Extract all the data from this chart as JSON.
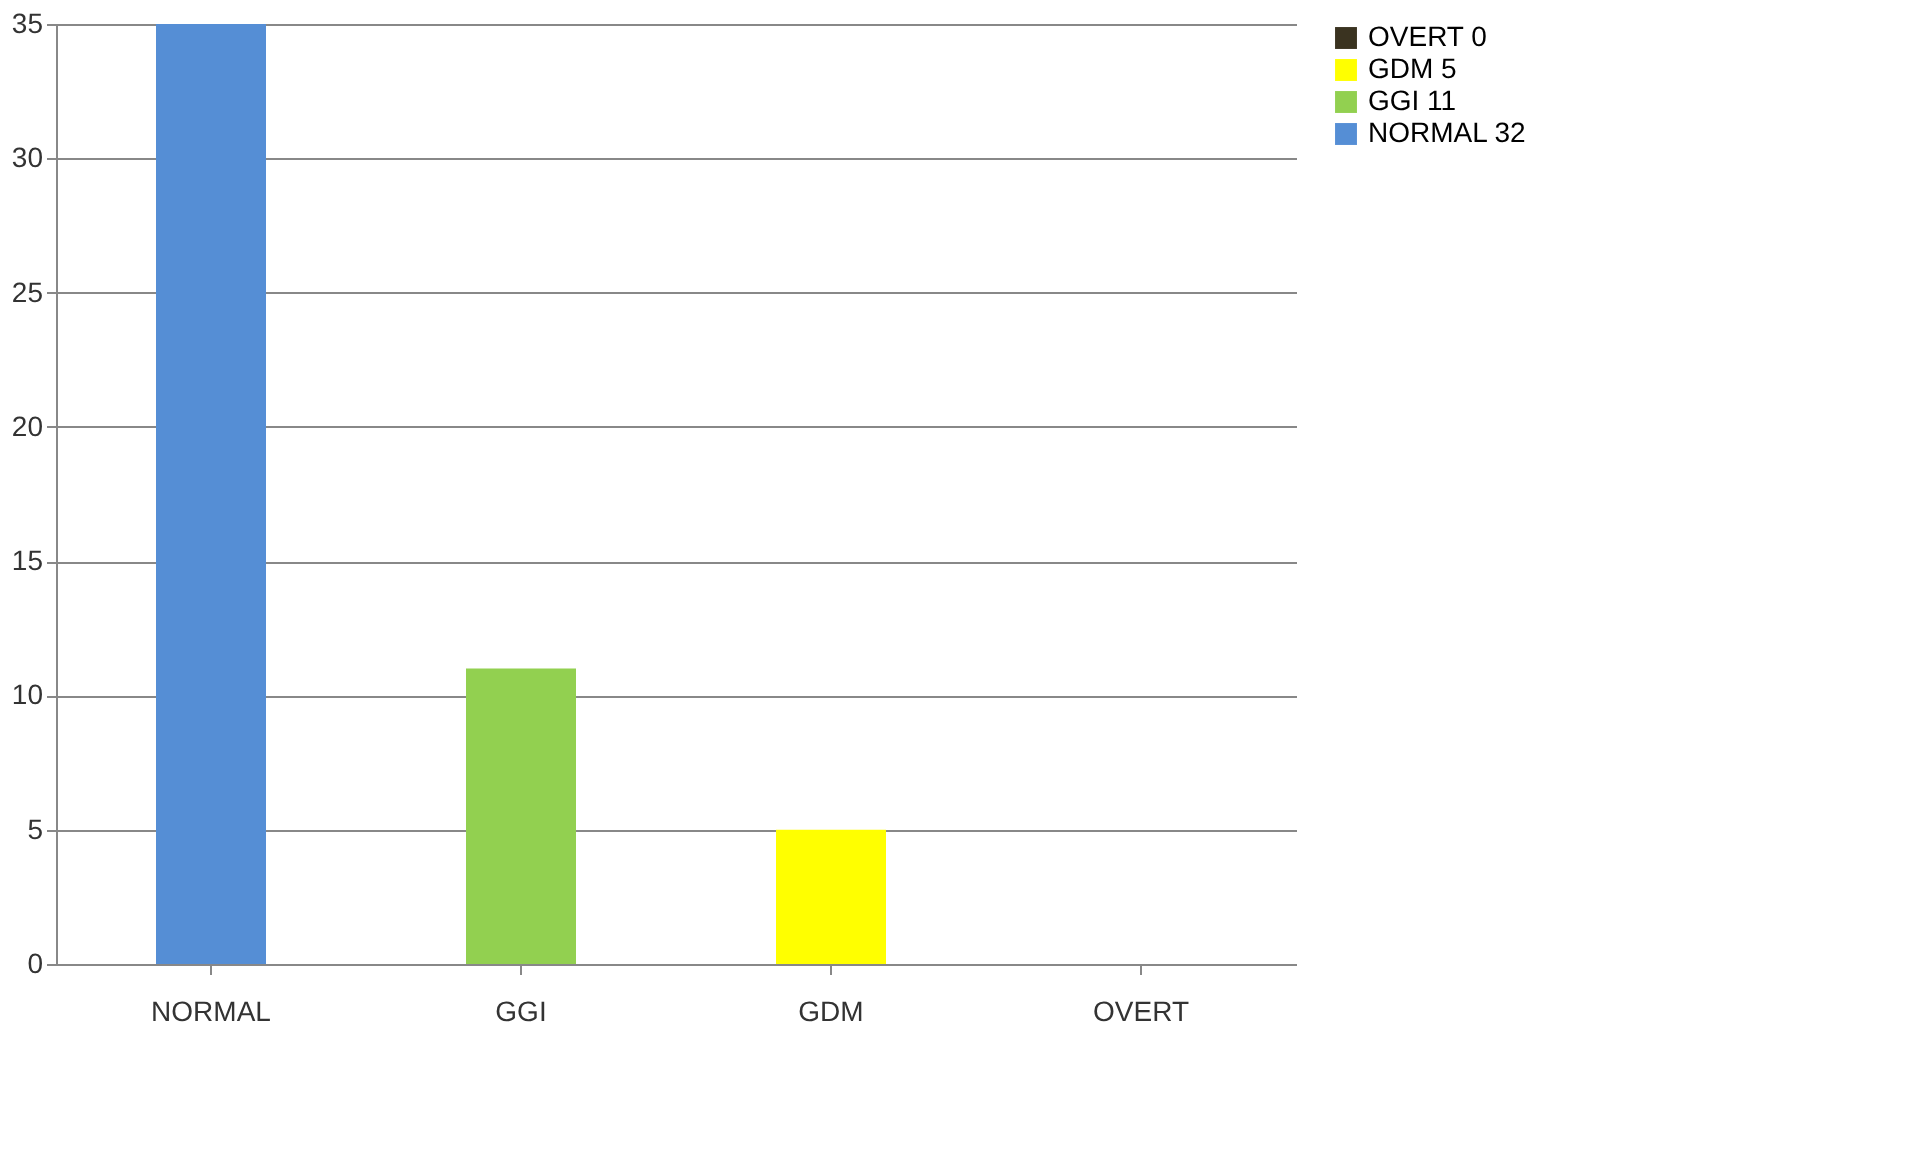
{
  "chart_data": {
    "type": "bar",
    "categories": [
      "NORMAL",
      "GGI",
      "GDM",
      "OVERT"
    ],
    "series": [
      {
        "name": "OVERT 0",
        "color": "#3a3320",
        "values": [
          null,
          null,
          null,
          0
        ]
      },
      {
        "name": "GDM 5",
        "color": "#ffff00",
        "values": [
          null,
          null,
          5,
          null
        ]
      },
      {
        "name": "GGI 11",
        "color": "#92d050",
        "values": [
          null,
          11,
          null,
          null
        ]
      },
      {
        "name": "NORMAL  32",
        "color": "#558ed5",
        "values": [
          35,
          null,
          null,
          null
        ]
      }
    ],
    "ylim": [
      0,
      35
    ],
    "yticks": [
      0,
      5,
      10,
      15,
      20,
      25,
      30,
      35
    ],
    "grid": "y",
    "legend": "right"
  }
}
